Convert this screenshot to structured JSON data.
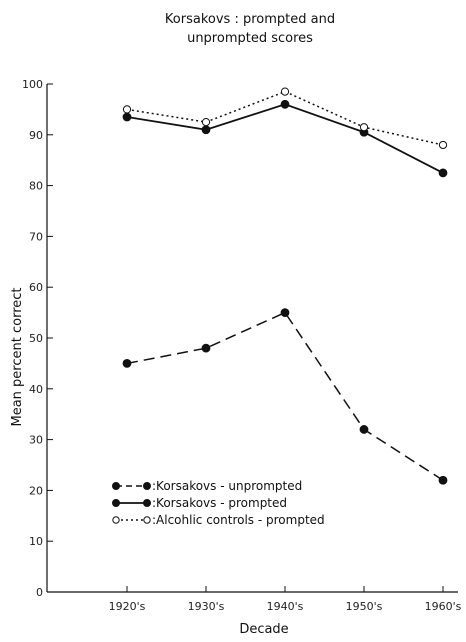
{
  "chart_data": {
    "type": "line",
    "title": "Korsakovs : prompted and unprompted scores",
    "title_lines": [
      "Korsakovs : prompted and",
      "unprompted scores"
    ],
    "xlabel": "Decade",
    "ylabel": "Mean percent correct",
    "categories": [
      "1920's",
      "1930's",
      "1940's",
      "1950's",
      "1960's"
    ],
    "ylim": [
      0,
      100
    ],
    "yticks": [
      0,
      10,
      20,
      30,
      40,
      50,
      60,
      70,
      80,
      90,
      100
    ],
    "grid": false,
    "legend_position": "bottom-left",
    "series": [
      {
        "name": "Korsakovs - unprompted",
        "legend_label": ":Korsakovs - unprompted",
        "values": [
          45,
          48,
          55,
          32,
          22
        ],
        "line_style": "dashed",
        "marker": "filled-circle",
        "color": "#111111"
      },
      {
        "name": "Korsakovs - prompted",
        "legend_label": ":Korsakovs - prompted",
        "values": [
          93.5,
          91,
          96,
          90.5,
          82.5
        ],
        "line_style": "solid",
        "marker": "filled-circle",
        "color": "#111111"
      },
      {
        "name": "Alcohlic controls - prompted",
        "legend_label": ":Alcohlic controls - prompted",
        "values": [
          95,
          92.5,
          98.5,
          91.5,
          88
        ],
        "line_style": "dotted",
        "marker": "open-circle",
        "color": "#111111"
      }
    ]
  }
}
